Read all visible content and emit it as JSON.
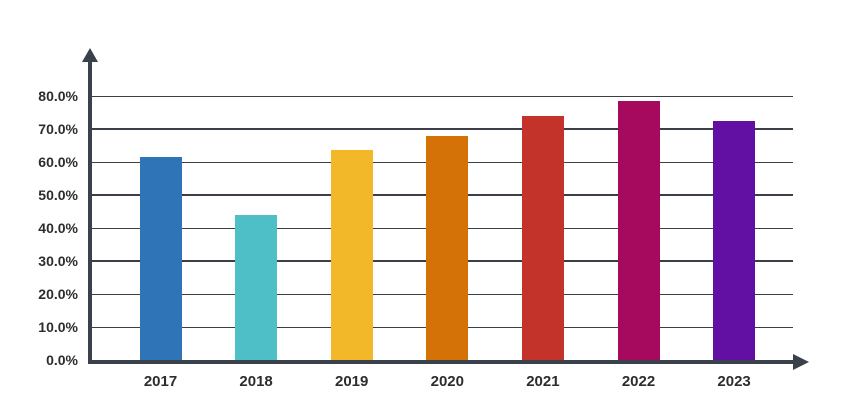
{
  "chart_data": {
    "type": "bar",
    "title": "",
    "xlabel": "",
    "ylabel": "",
    "categories": [
      "2017",
      "2018",
      "2019",
      "2020",
      "2021",
      "2022",
      "2023"
    ],
    "values": [
      61.5,
      44.0,
      63.5,
      68.0,
      74.0,
      78.5,
      72.5
    ],
    "bar_colors": [
      "#2E74B6",
      "#4EBEC7",
      "#F3B829",
      "#D47207",
      "#C43329",
      "#A60A5F",
      "#6110A3"
    ],
    "y_ticks": [
      0,
      10,
      20,
      30,
      40,
      50,
      60,
      70,
      80
    ],
    "y_tick_labels": [
      "0.0%",
      "10.0%",
      "20.0%",
      "30.0%",
      "40.0%",
      "50.0%",
      "60.0%",
      "70.0%",
      "80.0%"
    ],
    "ylim": [
      0,
      88
    ],
    "grid": "horizontal",
    "legend": "none",
    "thick_gridlines_at": [
      30,
      50,
      70
    ],
    "axis_color": "#3B414B",
    "grid_color": "#3A3F48",
    "text_color": "#2D2D2D",
    "background_color": "#FFFFFF"
  }
}
